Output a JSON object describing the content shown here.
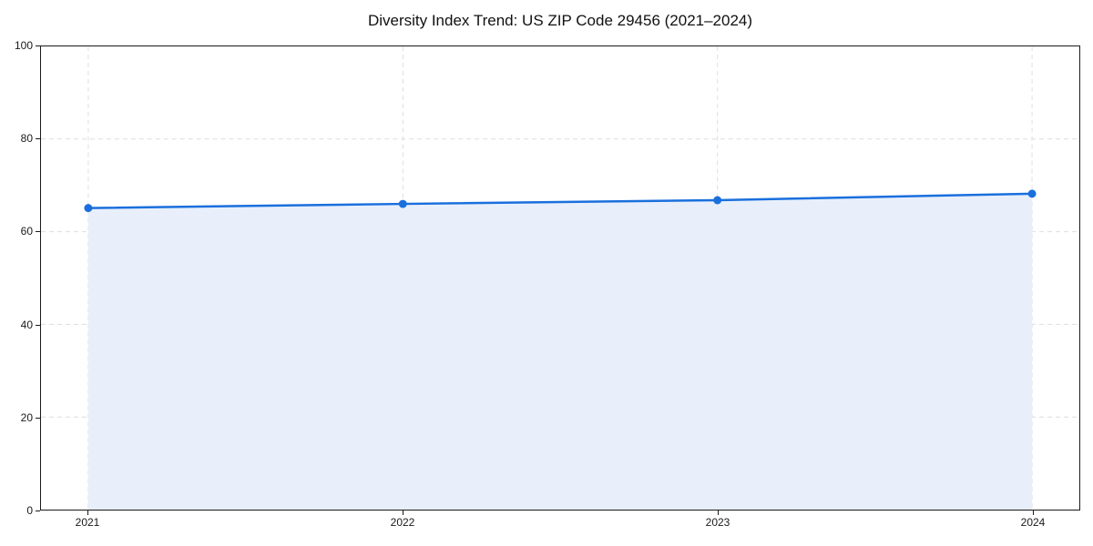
{
  "chart_data": {
    "type": "line",
    "title": "Diversity Index Trend: US ZIP Code 29456 (2021–2024)",
    "x": [
      "2021",
      "2022",
      "2023",
      "2024"
    ],
    "values": [
      65.1,
      66.0,
      66.8,
      68.2
    ],
    "series_name": "Diversity Index",
    "xlabel": "",
    "ylabel": "",
    "ylim": [
      0,
      100
    ],
    "yticks": [
      0,
      20,
      40,
      60,
      80,
      100
    ],
    "grid": true,
    "grid_style": "dashed",
    "legend": "none",
    "area_fill": true,
    "line_color": "#1a6fdd",
    "marker_color": "#1a6fdd",
    "fill_color": "#e8effb",
    "grid_color": "#dedede",
    "axis_color": "#1a1a1a",
    "tick_label_color": "#1a1a1a",
    "title_color": "#111111"
  }
}
